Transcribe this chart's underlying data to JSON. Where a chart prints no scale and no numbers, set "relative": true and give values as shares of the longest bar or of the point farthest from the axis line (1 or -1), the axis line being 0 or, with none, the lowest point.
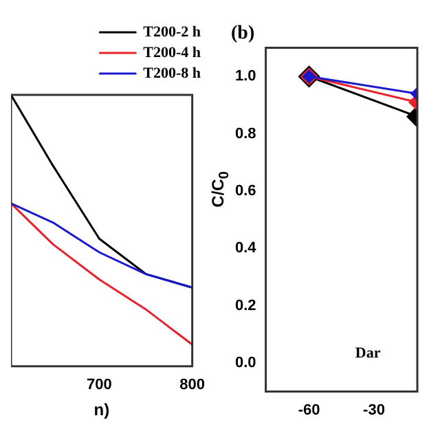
{
  "chart_data": [
    {
      "type": "line",
      "relative": true,
      "xlabel": "n)",
      "xlim": [
        605,
        800
      ],
      "xticks": [
        700,
        800
      ],
      "grid": false,
      "legend": "top right",
      "marker": "none",
      "line_style": "solid",
      "series": [
        {
          "name": "T200-2 h",
          "color": "#000000",
          "x": [
            605,
            650,
            700,
            750,
            800
          ],
          "values": [
            1.0,
            0.74,
            0.47,
            0.34,
            0.29
          ]
        },
        {
          "name": "T200-4 h",
          "color": "#e8222a",
          "x": [
            605,
            650,
            700,
            750,
            800
          ],
          "values": [
            0.6,
            0.45,
            0.32,
            0.21,
            0.08
          ]
        },
        {
          "name": "T200-8 h",
          "color": "#1a1acc",
          "x": [
            605,
            650,
            700,
            750,
            800
          ],
          "values": [
            0.6,
            0.53,
            0.42,
            0.34,
            0.29
          ]
        }
      ]
    },
    {
      "type": "line",
      "title": "(b)",
      "ylabel": "C/C$_{0}$",
      "xlim": [
        -80,
        -10
      ],
      "xticks": [
        -60,
        -30
      ],
      "ylim": [
        -0.1,
        1.1
      ],
      "yticks": [
        {
          "value": 0,
          "label": "0.0"
        },
        0.2,
        0.4,
        0.6,
        0.8,
        {
          "value": 1,
          "label": "1.0"
        }
      ],
      "grid": false,
      "legend": false,
      "marker": "diamond",
      "line_style": "solid",
      "annotations": [
        "Dar"
      ],
      "series": [
        {
          "color": "#000000",
          "x": [
            -60,
            -10
          ],
          "values": [
            1.0,
            0.86
          ]
        },
        {
          "color": "#e8222a",
          "x": [
            -60,
            -10
          ],
          "values": [
            1.0,
            0.91
          ]
        },
        {
          "color": "#1a1acc",
          "x": [
            -60,
            -10
          ],
          "values": [
            1.0,
            0.94
          ]
        }
      ]
    }
  ]
}
